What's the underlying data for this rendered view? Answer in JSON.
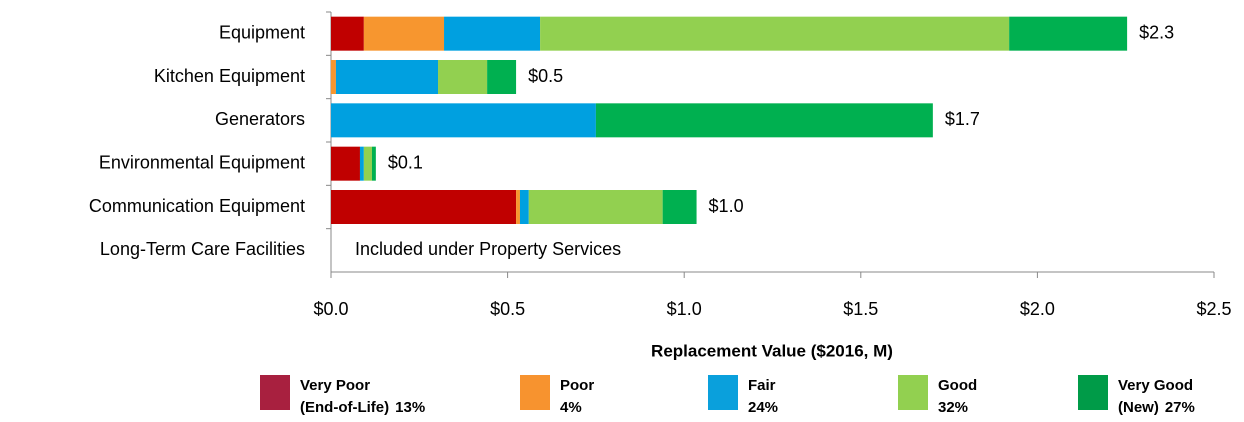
{
  "chart_data": {
    "type": "stacked_bar_horizontal",
    "categories": [
      "Equipment",
      "Kitchen Equipment",
      "Generators",
      "Environmental Equipment",
      "Communication Equipment",
      "Long-Term Care Facilities"
    ],
    "series": [
      {
        "name": "Very Poor (End-of-Life)",
        "color": "#c00000",
        "legend_color": "#a8203f",
        "share_label": "13%",
        "values": [
          0.093,
          null,
          null,
          0.082,
          0.524,
          null
        ]
      },
      {
        "name": "Poor",
        "color": "#f7962f",
        "legend_color": "#f7932f",
        "share_label": "4%",
        "values": [
          0.227,
          0.014,
          null,
          null,
          0.011,
          null
        ]
      },
      {
        "name": "Fair",
        "color": "#00a0e0",
        "legend_color": "#0aa0dc",
        "share_label": "24%",
        "values": [
          0.272,
          0.289,
          0.75,
          0.011,
          0.025,
          null
        ]
      },
      {
        "name": "Good",
        "color": "#92d050",
        "legend_color": "#92d050",
        "share_label": "32%",
        "values": [
          1.328,
          0.139,
          null,
          0.023,
          0.379,
          null
        ]
      },
      {
        "name": "Very Good (New)",
        "color": "#00b050",
        "legend_color": "#009b48",
        "share_label": "27%",
        "values": [
          0.334,
          0.082,
          0.954,
          0.011,
          0.096,
          null
        ]
      }
    ],
    "totals": [
      2.254,
      0.524,
      1.704,
      0.127,
      1.035,
      null
    ],
    "total_labels": [
      "$2.3",
      "$0.5",
      "$1.7",
      "$0.1",
      "$1.0",
      null
    ],
    "annotation": "Included under Property Services",
    "xlabel": "Replacement Value ($2016, M)",
    "xlim": [
      0,
      2.5
    ],
    "xticks": [
      {
        "value": 0,
        "label": "$0.0"
      },
      {
        "value": 0.5,
        "label": "$0.5"
      },
      {
        "value": 1,
        "label": "$1.0"
      },
      {
        "value": 1.5,
        "label": "$1.5"
      },
      {
        "value": 2,
        "label": "$2.0"
      },
      {
        "value": 2.5,
        "label": "$2.5"
      }
    ]
  }
}
